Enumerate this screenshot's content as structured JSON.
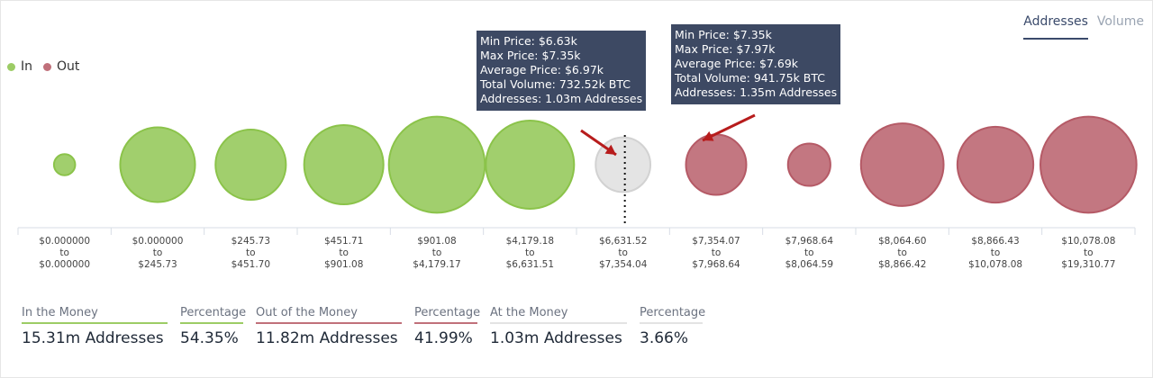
{
  "tabs": [
    {
      "label": "Addresses",
      "active": true
    },
    {
      "label": "Volume",
      "active": false
    }
  ],
  "colors": {
    "in": "#9ccc65",
    "in_stroke": "#8bc34a",
    "out": "#c0707a",
    "out_stroke": "#b55a66",
    "at": "#e3e3e3",
    "at_stroke": "#d2d2d2",
    "tooltip_bg": "#3d4963",
    "arrow": "#b71c1c"
  },
  "legend": [
    {
      "label": "In",
      "color": "#9ccc65"
    },
    {
      "label": "Out",
      "color": "#c0707a"
    }
  ],
  "chart_data": {
    "type": "bubble",
    "title": "",
    "legend_position": "top-left",
    "size_metric": "Addresses",
    "bins": [
      {
        "from": "$0.000000",
        "to": "$0.000000",
        "status": "in",
        "rel_size": 0.19
      },
      {
        "from": "$0.000000",
        "to": "$245.73",
        "status": "in",
        "rel_size": 0.67
      },
      {
        "from": "$245.73",
        "to": "$451.70",
        "status": "in",
        "rel_size": 0.63
      },
      {
        "from": "$451.71",
        "to": "$901.08",
        "status": "in",
        "rel_size": 0.71
      },
      {
        "from": "$901.08",
        "to": "$4,179.17",
        "status": "in",
        "rel_size": 0.86
      },
      {
        "from": "$4,179.18",
        "to": "$6,631.51",
        "status": "in",
        "rel_size": 0.79
      },
      {
        "from": "$6,631.52",
        "to": "$7,354.04",
        "status": "at",
        "rel_size": 0.49
      },
      {
        "from": "$7,354.07",
        "to": "$7,968.64",
        "status": "out",
        "rel_size": 0.54
      },
      {
        "from": "$7,968.64",
        "to": "$8,064.59",
        "status": "out",
        "rel_size": 0.38
      },
      {
        "from": "$8,064.60",
        "to": "$8,866.42",
        "status": "out",
        "rel_size": 0.74
      },
      {
        "from": "$8,866.43",
        "to": "$10,078.08",
        "status": "out",
        "rel_size": 0.68
      },
      {
        "from": "$10,078.08",
        "to": "$19,310.77",
        "status": "out",
        "rel_size": 0.86
      }
    ],
    "current_price_bin": 6,
    "tooltips": [
      {
        "bin": 6,
        "lines": [
          "Min Price: $6.63k",
          "Max Price: $7.35k",
          "Average Price: $6.97k",
          "Total Volume: 732.52k BTC",
          "Addresses: 1.03m Addresses"
        ]
      },
      {
        "bin": 7,
        "lines": [
          "Min Price: $7.35k",
          "Max Price: $7.97k",
          "Average Price: $7.69k",
          "Total Volume: 941.75k BTC",
          "Addresses: 1.35m Addresses"
        ]
      }
    ]
  },
  "summary": [
    {
      "head": "In the Money",
      "value": "15.31m Addresses",
      "color": "#9ccc65"
    },
    {
      "head": "Percentage",
      "value": "54.35%",
      "color": "#9ccc65"
    },
    {
      "head": "Out of the Money",
      "value": "11.82m Addresses",
      "color": "#c0707a"
    },
    {
      "head": "Percentage",
      "value": "41.99%",
      "color": "#c0707a"
    },
    {
      "head": "At the Money",
      "value": "1.03m Addresses",
      "color": "#e3e3e3"
    },
    {
      "head": "Percentage",
      "value": "3.66%",
      "color": "#e3e3e3"
    }
  ]
}
